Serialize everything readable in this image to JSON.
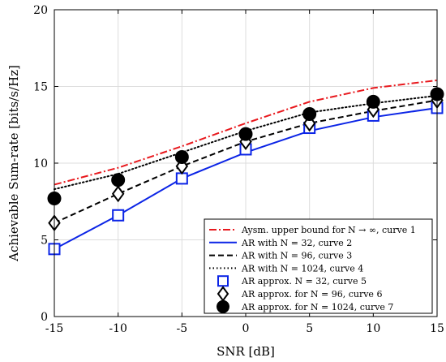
{
  "chart_data": {
    "type": "line",
    "xlabel": "SNR [dB]",
    "ylabel": "Achievable Sum-rate [bits/s/Hz]",
    "xlim": [
      -15,
      15
    ],
    "ylim": [
      0,
      20
    ],
    "x": [
      -15,
      -10,
      -5,
      0,
      5,
      10,
      15
    ],
    "xticks": [
      "-15",
      "-10",
      "-5",
      "0",
      "5",
      "10",
      "15"
    ],
    "yticks": [
      "0",
      "5",
      "10",
      "15",
      "20"
    ],
    "grid": true,
    "legend_position": "bottom-right",
    "series": [
      {
        "name": "Aysm. upper bound for N → ∞, curve 1",
        "color": "#e8191e",
        "style": "dashdot",
        "marker": "none",
        "values": [
          8.6,
          9.7,
          11.1,
          12.6,
          14.0,
          14.9,
          15.4
        ]
      },
      {
        "name": "AR with N = 32, curve 2",
        "color": "#0b24e6",
        "style": "solid",
        "marker": "none",
        "values": [
          4.4,
          6.6,
          9.0,
          10.7,
          12.1,
          13.0,
          13.6
        ]
      },
      {
        "name": "AR with N = 96, curve 3",
        "color": "#000000",
        "style": "dashed",
        "marker": "none",
        "values": [
          6.1,
          8.0,
          9.8,
          11.4,
          12.6,
          13.4,
          14.1
        ]
      },
      {
        "name": "AR with N = 1024, curve 4",
        "color": "#000000",
        "style": "dotted",
        "marker": "none",
        "values": [
          8.3,
          9.3,
          10.7,
          12.1,
          13.3,
          13.9,
          14.4
        ]
      },
      {
        "name": "AR approx. N = 32, curve 5",
        "color": "#0b24e6",
        "style": "none",
        "marker": "square",
        "values": [
          4.4,
          6.6,
          9.0,
          10.9,
          12.3,
          13.1,
          13.6
        ]
      },
      {
        "name": "AR approx. for N = 96, curve 6",
        "color": "#000000",
        "style": "none",
        "marker": "diamond",
        "values": [
          6.1,
          8.0,
          9.8,
          11.4,
          12.6,
          13.5,
          14.1
        ]
      },
      {
        "name": "AR approx. for N = 1024, curve 7",
        "color": "#000000",
        "style": "none",
        "marker": "circle",
        "values": [
          7.7,
          8.9,
          10.4,
          11.9,
          13.2,
          14.0,
          14.5
        ]
      }
    ]
  }
}
